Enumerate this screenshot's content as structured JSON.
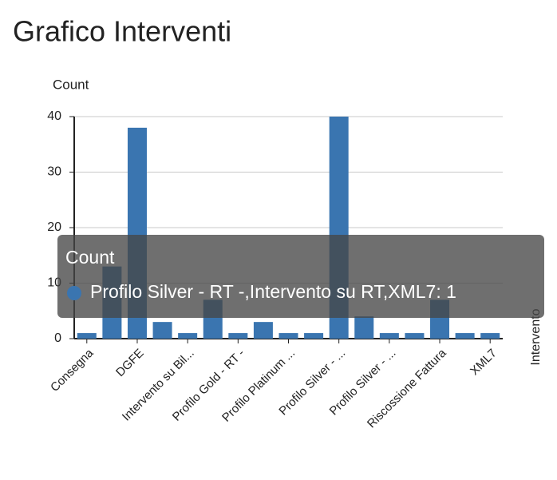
{
  "chart_data": {
    "type": "bar",
    "title": "Grafico Interventi",
    "y_label": "Count",
    "x_label": "Intervento",
    "categories": [
      "Consegna",
      null,
      "DGFE",
      null,
      "Intervento su Bil...",
      null,
      "Profilo Gold - RT -",
      null,
      "Profilo Platinum ...",
      null,
      "Profilo Silver - ...",
      null,
      "Profilo Silver - ...",
      null,
      "Riscossione Fattura",
      null,
      "XML7"
    ],
    "values": [
      1,
      13,
      38,
      3,
      1,
      7,
      1,
      3,
      1,
      1,
      40,
      4,
      1,
      1,
      7,
      1,
      1
    ],
    "color": "#3a75b0",
    "ylim": [
      0,
      40
    ],
    "yticks": [
      0,
      10,
      20,
      30,
      40
    ],
    "grid": true,
    "tooltip": {
      "title": "Count",
      "text": "Profilo Silver - RT -,Intervento su RT,XML7: 1"
    }
  }
}
